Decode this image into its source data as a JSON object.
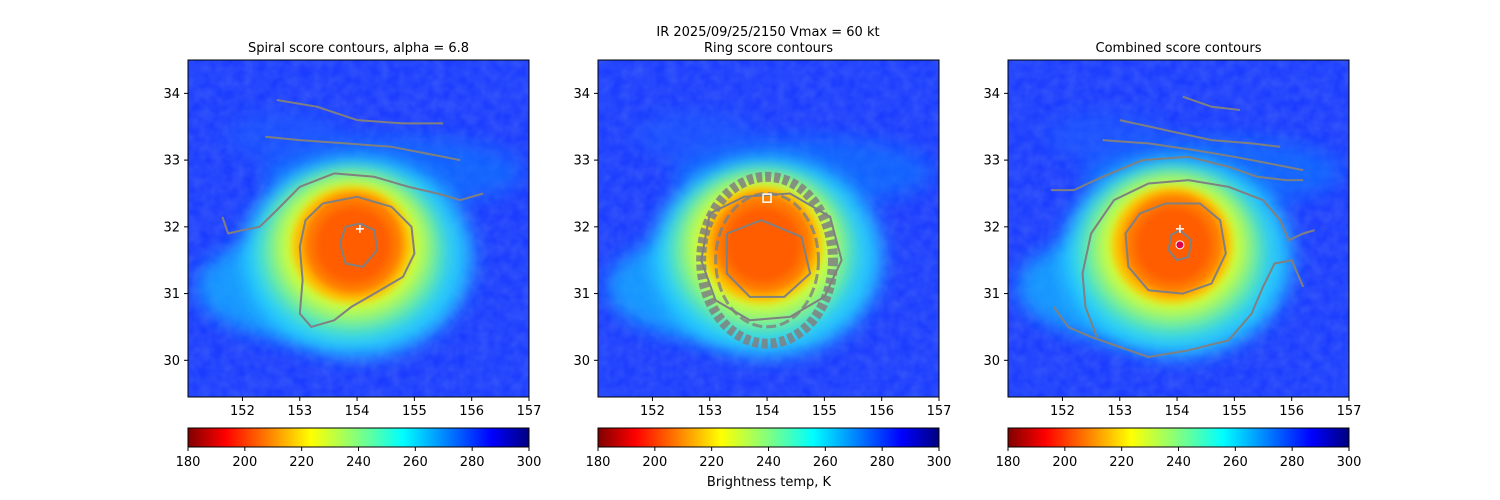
{
  "figure": {
    "suptitle_line1": "IR  2025/09/25/2150    Vmax = 60 kt",
    "colorbar_label": "Brightness temp, K",
    "colormap": "jet",
    "contour_color": "#808080"
  },
  "chart_data": [
    {
      "type": "heatmap",
      "title": "Spiral score contours, alpha =  6.8",
      "xlim": [
        151.05,
        157.0
      ],
      "ylim": [
        29.45,
        34.5
      ],
      "xticks": [
        "152",
        "153",
        "154",
        "155",
        "156",
        "157"
      ],
      "yticks": [
        "30",
        "31",
        "32",
        "33",
        "34"
      ],
      "colorbar": {
        "range": [
          180,
          300
        ],
        "ticks": [
          "180",
          "200",
          "220",
          "240",
          "260",
          "280",
          "300"
        ]
      },
      "markers": [
        {
          "label": "center estimate",
          "symbol": "plus",
          "x": 154.05,
          "y": 31.97
        }
      ],
      "contours": [
        [
          [
            152.6,
            33.9
          ],
          [
            153.3,
            33.8
          ],
          [
            154.0,
            33.6
          ],
          [
            154.8,
            33.55
          ],
          [
            155.5,
            33.55
          ]
        ],
        [
          [
            152.4,
            33.35
          ],
          [
            153.0,
            33.3
          ],
          [
            153.8,
            33.25
          ],
          [
            154.6,
            33.2
          ],
          [
            155.2,
            33.1
          ],
          [
            155.8,
            33.0
          ]
        ],
        [
          [
            151.65,
            32.15
          ],
          [
            151.75,
            31.9
          ],
          [
            152.0,
            31.95
          ],
          [
            152.3,
            32.0
          ],
          [
            152.6,
            32.25
          ],
          [
            153.0,
            32.6
          ],
          [
            153.6,
            32.8
          ],
          [
            154.3,
            32.75
          ],
          [
            154.9,
            32.6
          ],
          [
            155.4,
            32.5
          ],
          [
            155.8,
            32.4
          ],
          [
            156.2,
            32.5
          ]
        ],
        [
          [
            153.4,
            32.35
          ],
          [
            154.0,
            32.45
          ],
          [
            154.6,
            32.3
          ],
          [
            154.95,
            32.0
          ],
          [
            155.0,
            31.6
          ],
          [
            154.8,
            31.25
          ],
          [
            154.3,
            31.0
          ],
          [
            153.9,
            30.8
          ],
          [
            153.6,
            30.6
          ],
          [
            153.2,
            30.5
          ],
          [
            153.0,
            30.7
          ],
          [
            153.05,
            31.2
          ],
          [
            153.0,
            31.7
          ],
          [
            153.1,
            32.1
          ],
          [
            153.4,
            32.35
          ]
        ],
        [
          [
            154.05,
            32.05
          ],
          [
            154.3,
            31.95
          ],
          [
            154.35,
            31.65
          ],
          [
            154.1,
            31.4
          ],
          [
            153.8,
            31.45
          ],
          [
            153.7,
            31.75
          ],
          [
            153.8,
            32.0
          ],
          [
            154.05,
            32.05
          ]
        ]
      ]
    },
    {
      "type": "heatmap",
      "title": "Ring score contours",
      "xlim": [
        151.05,
        157.0
      ],
      "ylim": [
        29.45,
        34.5
      ],
      "xticks": [
        "152",
        "153",
        "154",
        "155",
        "156",
        "157"
      ],
      "yticks": [
        "30",
        "31",
        "32",
        "33",
        "34"
      ],
      "colorbar": {
        "range": [
          180,
          300
        ],
        "ticks": [
          "180",
          "200",
          "220",
          "240",
          "260",
          "280",
          "300"
        ]
      },
      "markers": [
        {
          "label": "ring center",
          "symbol": "square",
          "x": 154.0,
          "y": 32.43
        }
      ],
      "contour_region": {
        "x": 154.0,
        "y": 31.5,
        "rx": 1.15,
        "ry": 1.0
      },
      "contours": [
        [
          [
            153.0,
            32.2
          ],
          [
            153.6,
            32.45
          ],
          [
            154.4,
            32.5
          ],
          [
            155.1,
            32.15
          ],
          [
            155.3,
            31.5
          ],
          [
            155.0,
            30.95
          ],
          [
            154.4,
            30.65
          ],
          [
            153.7,
            30.6
          ],
          [
            153.1,
            30.9
          ],
          [
            152.85,
            31.5
          ],
          [
            153.0,
            32.2
          ]
        ],
        [
          [
            153.3,
            31.9
          ],
          [
            153.9,
            32.1
          ],
          [
            154.6,
            31.85
          ],
          [
            154.75,
            31.3
          ],
          [
            154.3,
            30.95
          ],
          [
            153.7,
            30.95
          ],
          [
            153.3,
            31.3
          ],
          [
            153.3,
            31.9
          ]
        ]
      ]
    },
    {
      "type": "heatmap",
      "title": "Combined score contours",
      "xlim": [
        151.05,
        157.0
      ],
      "ylim": [
        29.45,
        34.5
      ],
      "xticks": [
        "152",
        "153",
        "154",
        "155",
        "156",
        "157"
      ],
      "yticks": [
        "30",
        "31",
        "32",
        "33",
        "34"
      ],
      "colorbar": {
        "range": [
          180,
          300
        ],
        "ticks": [
          "180",
          "200",
          "220",
          "240",
          "260",
          "280",
          "300"
        ]
      },
      "markers": [
        {
          "label": "center estimate",
          "symbol": "plus",
          "x": 154.05,
          "y": 31.97
        },
        {
          "label": "combined center",
          "symbol": "dot",
          "x": 154.05,
          "y": 31.73
        }
      ],
      "contours": [
        [
          [
            154.1,
            33.95
          ],
          [
            154.6,
            33.8
          ],
          [
            155.1,
            33.75
          ]
        ],
        [
          [
            153.0,
            33.6
          ],
          [
            153.8,
            33.45
          ],
          [
            154.6,
            33.3
          ],
          [
            155.3,
            33.25
          ],
          [
            155.8,
            33.2
          ]
        ],
        [
          [
            152.7,
            33.3
          ],
          [
            153.5,
            33.25
          ],
          [
            154.3,
            33.15
          ],
          [
            155.0,
            33.05
          ],
          [
            155.6,
            32.95
          ],
          [
            156.2,
            32.85
          ]
        ],
        [
          [
            151.8,
            32.55
          ],
          [
            152.2,
            32.55
          ],
          [
            152.7,
            32.75
          ],
          [
            153.4,
            33.0
          ],
          [
            154.2,
            33.05
          ],
          [
            154.9,
            32.9
          ],
          [
            155.4,
            32.75
          ],
          [
            155.9,
            32.7
          ],
          [
            156.2,
            32.7
          ]
        ],
        [
          [
            152.6,
            30.35
          ],
          [
            152.4,
            30.8
          ],
          [
            152.35,
            31.3
          ],
          [
            152.5,
            31.9
          ],
          [
            152.9,
            32.4
          ],
          [
            153.5,
            32.65
          ],
          [
            154.2,
            32.7
          ],
          [
            154.9,
            32.6
          ],
          [
            155.5,
            32.4
          ],
          [
            155.8,
            32.1
          ],
          [
            155.95,
            31.8
          ],
          [
            156.2,
            31.9
          ],
          [
            156.4,
            31.95
          ]
        ],
        [
          [
            153.8,
            32.35
          ],
          [
            154.4,
            32.35
          ],
          [
            154.75,
            32.1
          ],
          [
            154.85,
            31.6
          ],
          [
            154.6,
            31.15
          ],
          [
            154.1,
            31.0
          ],
          [
            153.5,
            31.05
          ],
          [
            153.15,
            31.4
          ],
          [
            153.1,
            31.9
          ],
          [
            153.35,
            32.2
          ],
          [
            153.8,
            32.35
          ]
        ],
        [
          [
            154.05,
            31.95
          ],
          [
            154.25,
            31.8
          ],
          [
            154.2,
            31.55
          ],
          [
            154.0,
            31.5
          ],
          [
            153.85,
            31.65
          ],
          [
            153.9,
            31.88
          ],
          [
            154.05,
            31.95
          ]
        ],
        [
          [
            151.85,
            30.8
          ],
          [
            152.1,
            30.5
          ],
          [
            152.5,
            30.35
          ],
          [
            153.0,
            30.2
          ],
          [
            153.5,
            30.05
          ],
          [
            154.2,
            30.15
          ],
          [
            154.9,
            30.3
          ],
          [
            155.3,
            30.7
          ],
          [
            155.5,
            31.1
          ],
          [
            155.7,
            31.45
          ],
          [
            156.0,
            31.5
          ],
          [
            156.2,
            31.1
          ]
        ]
      ]
    }
  ]
}
